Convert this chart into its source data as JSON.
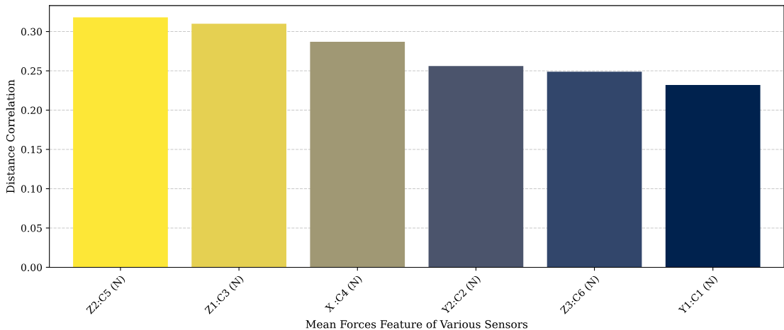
{
  "chart_data": {
    "type": "bar",
    "xlabel": "Mean Forces Feature of Various Sensors",
    "ylabel": "Distance Correlation",
    "categories": [
      "Z2:C5 (N)",
      "Z1:C3 (N)",
      "X :C4 (N)",
      "Y2:C2 (N)",
      "Z3:C6 (N)",
      "Y1:C1 (N)"
    ],
    "values": [
      0.318,
      0.31,
      0.287,
      0.256,
      0.249,
      0.232
    ],
    "colors": [
      "#fde737",
      "#e5d052",
      "#a09874",
      "#4b546c",
      "#32466b",
      "#00224e"
    ],
    "ylim": [
      0,
      0.333
    ],
    "yticks": [
      {
        "value": 0,
        "label": "0.00"
      },
      {
        "value": 0.05,
        "label": "0.05"
      },
      {
        "value": 0.1,
        "label": "0.10"
      },
      {
        "value": 0.15,
        "label": "0.15"
      },
      {
        "value": 0.2,
        "label": "0.20"
      },
      {
        "value": 0.25,
        "label": "0.25"
      },
      {
        "value": 0.3,
        "label": "0.30"
      }
    ],
    "grid": "y"
  }
}
